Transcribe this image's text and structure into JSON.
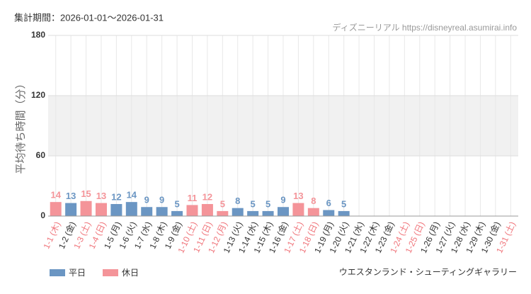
{
  "chart_data": {
    "type": "bar",
    "subtitle": "集計期間：2026-01-01〜2026-01-31",
    "source": "ディズニーリアル https://disneyreal.asumirai.info",
    "y_label": "平均待ち時間（分）",
    "title": "ウエスタンランド・シューティングギャラリー",
    "categories": [
      "1-1 (木)",
      "1-2 (金)",
      "1-3 (土)",
      "1-4 (日)",
      "1-5 (月)",
      "1-6 (火)",
      "1-7 (水)",
      "1-8 (木)",
      "1-9 (金)",
      "1-10 (土)",
      "1-11 (日)",
      "1-12 (月)",
      "1-13 (火)",
      "1-14 (水)",
      "1-15 (木)",
      "1-16 (金)",
      "1-17 (土)",
      "1-18 (日)",
      "1-19 (月)",
      "1-20 (火)",
      "1-21 (水)",
      "1-22 (木)",
      "1-23 (金)",
      "1-24 (土)",
      "1-25 (日)",
      "1-26 (月)",
      "1-27 (火)",
      "1-28 (水)",
      "1-29 (木)",
      "1-30 (金)",
      "1-31 (土)"
    ],
    "label_colors": [
      "#f0767c",
      "#333333",
      "#f0767c",
      "#f0767c",
      "#333333",
      "#333333",
      "#333333",
      "#333333",
      "#333333",
      "#f0767c",
      "#f0767c",
      "#f0767c",
      "#333333",
      "#333333",
      "#333333",
      "#333333",
      "#f0767c",
      "#f0767c",
      "#333333",
      "#333333",
      "#333333",
      "#333333",
      "#333333",
      "#f0767c",
      "#f0767c",
      "#333333",
      "#333333",
      "#333333",
      "#333333",
      "#333333",
      "#f0767c"
    ],
    "series": [
      {
        "name": "平日",
        "color": "#6b96c3",
        "values": [
          null,
          13,
          null,
          null,
          12,
          14,
          9,
          9,
          5,
          null,
          null,
          null,
          8,
          5,
          5,
          9,
          null,
          null,
          6,
          5,
          null,
          null,
          null,
          null,
          null,
          null,
          null,
          null,
          null,
          null,
          null
        ]
      },
      {
        "name": "休日",
        "color": "#f49499",
        "values": [
          14,
          null,
          15,
          13,
          null,
          null,
          null,
          null,
          null,
          11,
          12,
          5,
          null,
          null,
          null,
          null,
          13,
          8,
          null,
          null,
          null,
          null,
          null,
          null,
          null,
          null,
          null,
          null,
          null,
          null,
          null
        ]
      }
    ],
    "ylim": [
      0,
      180
    ],
    "yticks": [
      0,
      60,
      120,
      180
    ],
    "shade_ranges": [
      [
        60,
        120
      ]
    ],
    "grid": true
  }
}
